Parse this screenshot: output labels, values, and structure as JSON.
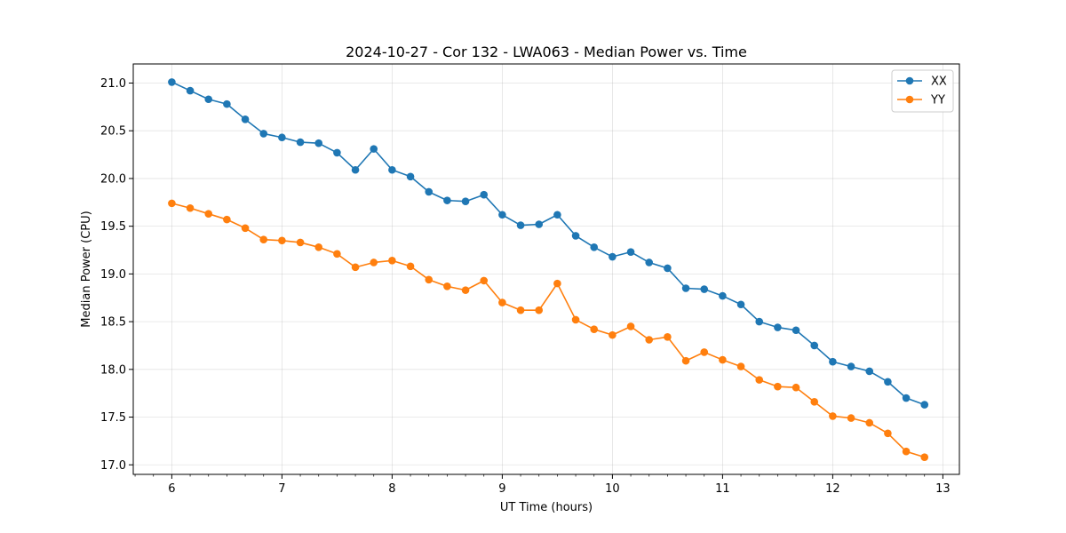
{
  "chart_data": {
    "type": "line",
    "title": "2024-10-27 - Cor 132 - LWA063 - Median Power vs. Time",
    "xlabel": "UT Time (hours)",
    "ylabel": "Median Power (CPU)",
    "xlim": [
      5.65,
      13.15
    ],
    "ylim": [
      16.9,
      21.2
    ],
    "xticks": [
      6,
      7,
      8,
      9,
      10,
      11,
      12,
      13
    ],
    "yticks": [
      17.0,
      17.5,
      18.0,
      18.5,
      19.0,
      19.5,
      20.0,
      20.5,
      21.0
    ],
    "grid": true,
    "legend_position": "top-right",
    "x": [
      6.0,
      6.1667,
      6.3333,
      6.5,
      6.6667,
      6.8333,
      7.0,
      7.1667,
      7.3333,
      7.5,
      7.6667,
      7.8333,
      8.0,
      8.1667,
      8.3333,
      8.5,
      8.6667,
      8.8333,
      9.0,
      9.1667,
      9.3333,
      9.5,
      9.6667,
      9.8333,
      10.0,
      10.1667,
      10.3333,
      10.5,
      10.6667,
      10.8333,
      11.0,
      11.1667,
      11.3333,
      11.5,
      11.6667,
      11.8333,
      12.0,
      12.1667,
      12.3333,
      12.5,
      12.6667,
      12.8333
    ],
    "series": [
      {
        "name": "XX",
        "color": "#1f77b4",
        "values": [
          21.01,
          20.92,
          20.83,
          20.78,
          20.62,
          20.47,
          20.43,
          20.38,
          20.37,
          20.27,
          20.09,
          20.31,
          20.09,
          20.02,
          19.86,
          19.77,
          19.76,
          19.83,
          19.62,
          19.51,
          19.52,
          19.62,
          19.4,
          19.28,
          19.18,
          19.23,
          19.12,
          19.06,
          18.85,
          18.84,
          18.77,
          18.68,
          18.5,
          18.44,
          18.41,
          18.25,
          18.08,
          18.03,
          17.98,
          17.87,
          17.7,
          17.63
        ]
      },
      {
        "name": "YY",
        "color": "#ff7f0e",
        "values": [
          19.74,
          19.69,
          19.63,
          19.57,
          19.48,
          19.36,
          19.35,
          19.33,
          19.28,
          19.21,
          19.07,
          19.12,
          19.14,
          19.08,
          18.94,
          18.87,
          18.83,
          18.93,
          18.7,
          18.62,
          18.62,
          18.9,
          18.52,
          18.42,
          18.36,
          18.45,
          18.31,
          18.34,
          18.09,
          18.18,
          18.1,
          18.03,
          17.89,
          17.82,
          17.81,
          17.66,
          17.51,
          17.49,
          17.44,
          17.33,
          17.14,
          17.08
        ]
      }
    ]
  }
}
